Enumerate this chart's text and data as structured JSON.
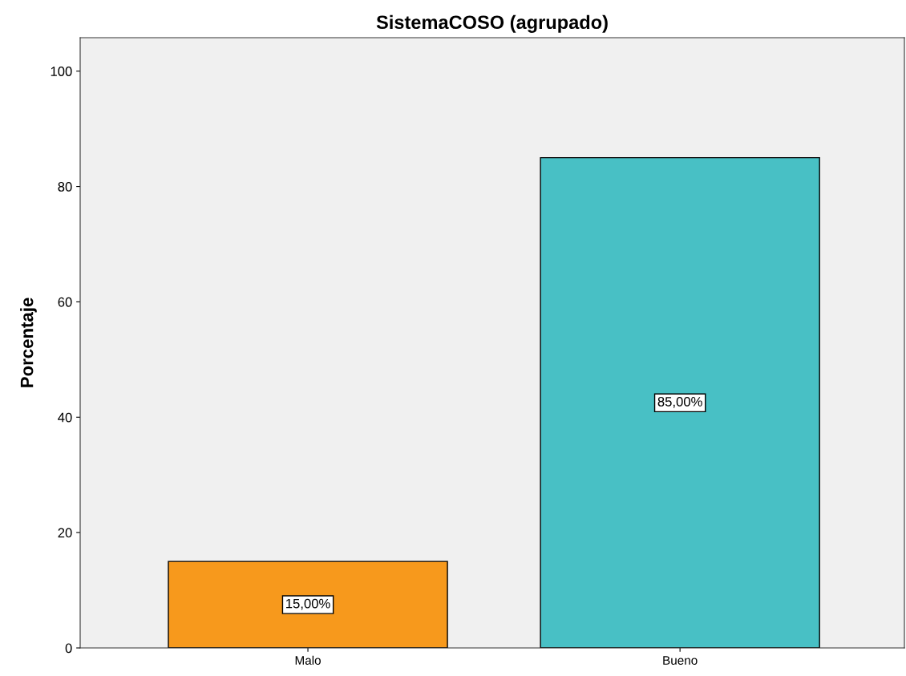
{
  "chart_data": {
    "type": "bar",
    "title": "SistemaCOSO (agrupado)",
    "ylabel": "Porcentaje",
    "categories": [
      "Malo",
      "Bueno"
    ],
    "values": [
      15,
      85
    ],
    "colors": [
      "#f7991c",
      "#48c0c5"
    ],
    "value_labels": [
      "15,00%",
      "85,00%"
    ],
    "ylim": [
      0,
      105.8
    ],
    "yticks": [
      0,
      20,
      40,
      60,
      80,
      100
    ],
    "grid": false,
    "legend": false
  }
}
